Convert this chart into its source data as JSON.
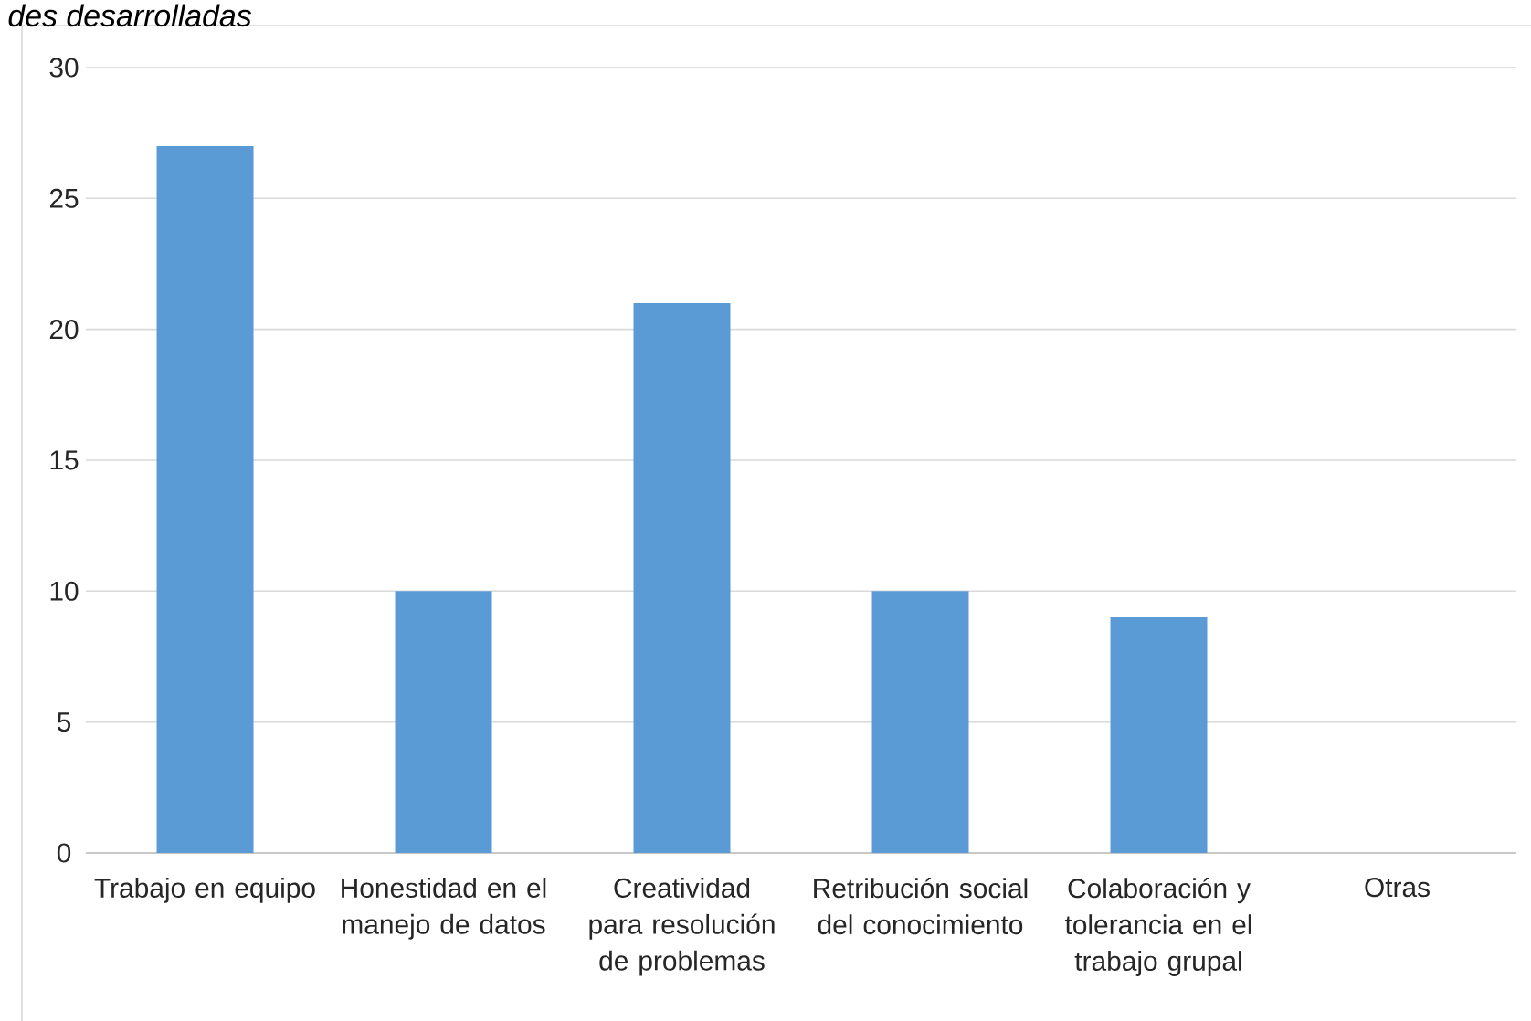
{
  "chart_data": {
    "type": "bar",
    "title": "des desarrolladas",
    "categories": [
      "Trabajo en equipo",
      "Honestidad en el manejo de datos",
      "Creatividad para resolución de problemas",
      "Retribución social del conocimiento",
      "Colaboración y tolerancia en el trabajo grupal",
      "Otras"
    ],
    "values": [
      27,
      10,
      21,
      10,
      9,
      0
    ],
    "color": "#5b9bd5",
    "ylim": [
      0,
      30
    ],
    "yticks": [
      0,
      5,
      10,
      15,
      20,
      25,
      30
    ],
    "grid": "y"
  }
}
